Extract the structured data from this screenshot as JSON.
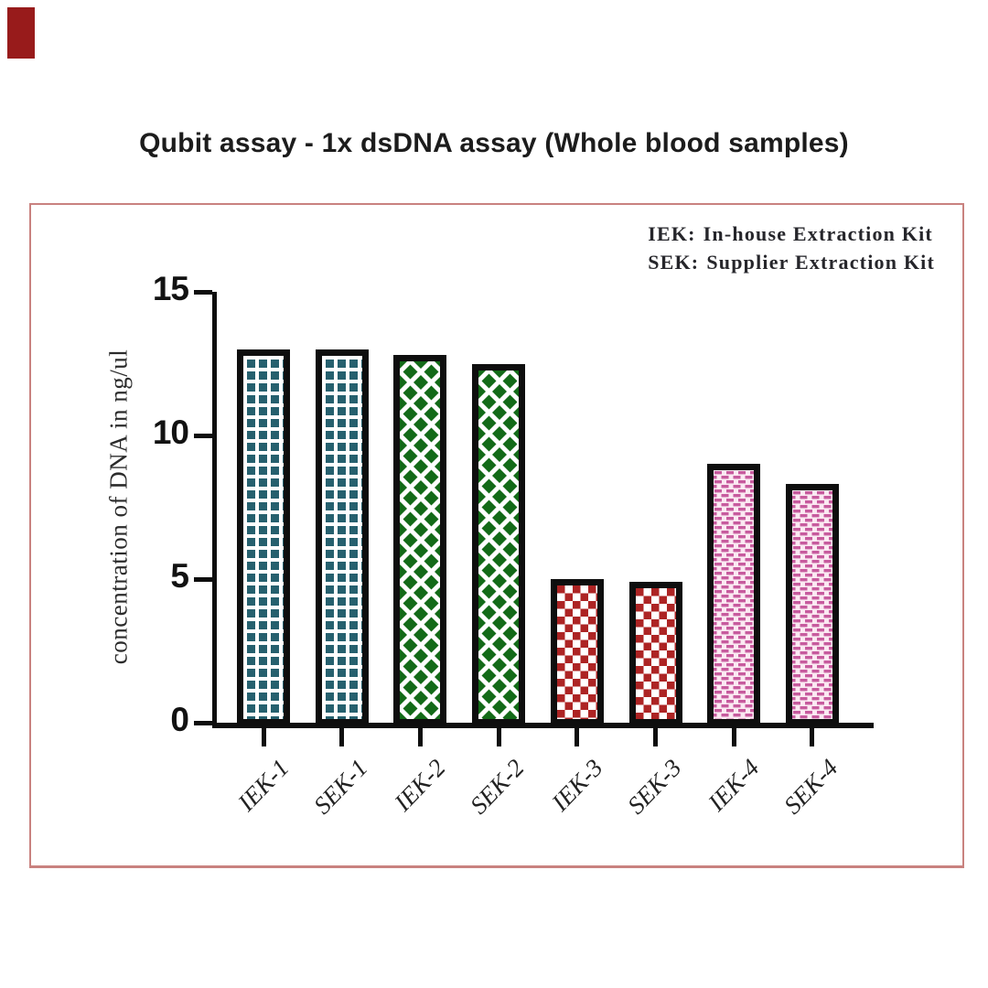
{
  "chart_data": {
    "type": "bar",
    "title": "Qubit assay - 1x dsDNA assay (Whole blood samples)",
    "categories": [
      "IEK-1",
      "SEK-1",
      "IEK-2",
      "SEK-2",
      "IEK-3",
      "SEK-3",
      "IEK-4",
      "SEK-4"
    ],
    "values": [
      13,
      13,
      12.8,
      12.5,
      5,
      4.9,
      9,
      8.3
    ],
    "xlabel": "",
    "ylabel": "concentration of DNA in ng/ul",
    "ylim": [
      0,
      15
    ],
    "yticks": [
      0,
      5,
      10,
      15
    ],
    "grid": false,
    "legend_position": "top-right",
    "pattern_by_bar": [
      "teal-grid",
      "teal-grid",
      "green-diamond",
      "green-diamond",
      "red-checker",
      "red-checker",
      "pink-dash",
      "pink-dash"
    ],
    "bar_patterns": [
      {
        "name": "teal-grid",
        "fill": "#26606e",
        "bg": "#ffffff",
        "style": "grid-squares"
      },
      {
        "name": "green-diamond",
        "fill": "#136a18",
        "bg": "#ffffff",
        "style": "diamond-lattice"
      },
      {
        "name": "red-checker",
        "fill": "#ad2424",
        "bg": "#ffffff",
        "style": "checkerboard"
      },
      {
        "name": "pink-dash",
        "fill": "#c75b9e",
        "bg": "#fbe9f2",
        "style": "staggered-dashes"
      }
    ],
    "bar_border_color": "#0e0e0e",
    "axis_color": "#0e0e0e"
  },
  "legend": {
    "items": [
      {
        "abbr": "IEK:",
        "text": "In-house Extraction Kit"
      },
      {
        "abbr": "SEK:",
        "text": "Supplier Extraction Kit"
      }
    ]
  },
  "frame": {
    "border_color": "#c9827f"
  },
  "corner_mark": {
    "color": "#981b1b"
  }
}
